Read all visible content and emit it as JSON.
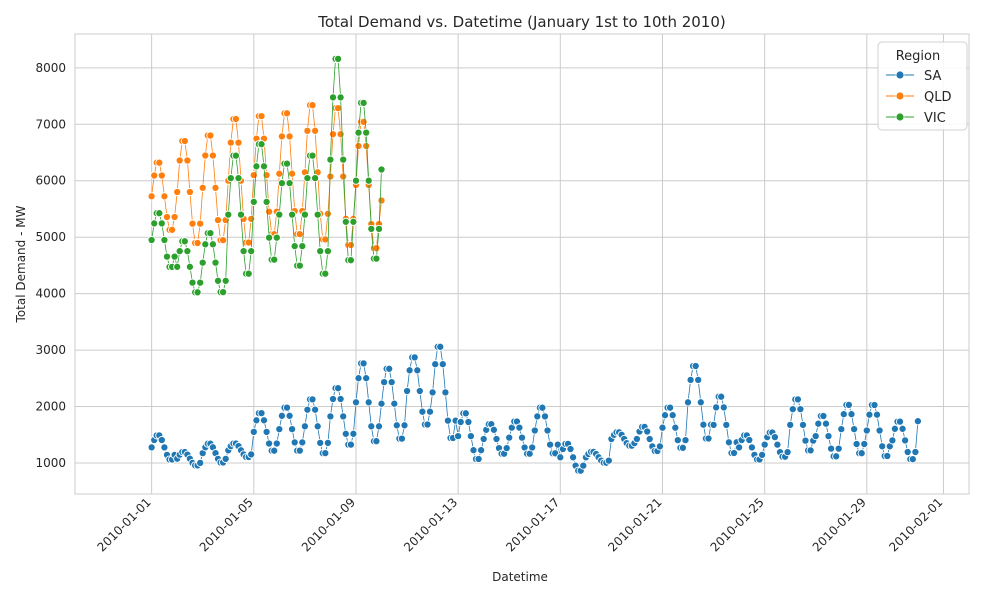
{
  "chart_data": {
    "type": "line",
    "title": "Total Demand vs. Datetime (January 1st to 10th 2010)",
    "xlabel": "Datetime",
    "ylabel": "Total Demand - MW",
    "xlim": [
      "2009-12-29",
      "2010-02-02"
    ],
    "ylim": [
      450,
      8600
    ],
    "x_ticks": [
      "2010-01-01",
      "2010-01-05",
      "2010-01-09",
      "2010-01-13",
      "2010-01-17",
      "2010-01-21",
      "2010-01-25",
      "2010-01-29",
      "2010-02-01"
    ],
    "y_ticks": [
      1000,
      2000,
      3000,
      4000,
      5000,
      6000,
      7000,
      8000
    ],
    "grid": true,
    "legend": {
      "title": "Region",
      "placement": "top-right"
    },
    "marker": "circle",
    "series": [
      {
        "name": "SA",
        "color": "#1f77b4",
        "start": "2010-01-01",
        "end": "2010-01-31",
        "daily_min": [
          1050,
          950,
          1000,
          1100,
          1200,
          1200,
          1150,
          1300,
          1350,
          1400,
          1650,
          1400,
          1050,
          1150,
          1150,
          1150,
          850,
          1000,
          1300,
          1200,
          1250,
          1400,
          1150,
          1050,
          1100,
          1200,
          1100,
          1150,
          1100,
          1050,
          1400
        ],
        "daily_max": [
          1500,
          1200,
          1350,
          1350,
          1900,
          2000,
          2150,
          2350,
          2800,
          2700,
          2900,
          3100,
          1900,
          1700,
          1750,
          2000,
          1350,
          1200,
          1550,
          1650,
          2000,
          2750,
          2200,
          1500,
          1550,
          2150,
          1850,
          2050,
          2050,
          1750,
          2080
        ]
      },
      {
        "name": "QLD",
        "color": "#ff7f0e",
        "start": "2010-01-01",
        "end": "2010-01-10",
        "daily_min": [
          5100,
          4850,
          4900,
          4850,
          5000,
          5000,
          4900,
          4800,
          4750,
          4700
        ],
        "daily_max": [
          6350,
          6750,
          6850,
          7150,
          7200,
          7250,
          7400,
          7350,
          7100,
          6600
        ]
      },
      {
        "name": "VIC",
        "color": "#2ca02c",
        "start": "2010-01-01",
        "end": "2010-01-10",
        "daily_min": [
          4450,
          4000,
          4000,
          4300,
          4550,
          4450,
          4300,
          4500,
          4550,
          5200
        ],
        "daily_max": [
          5450,
          4950,
          5100,
          6500,
          6700,
          6350,
          6500,
          8250,
          7450,
          7200
        ]
      }
    ]
  }
}
